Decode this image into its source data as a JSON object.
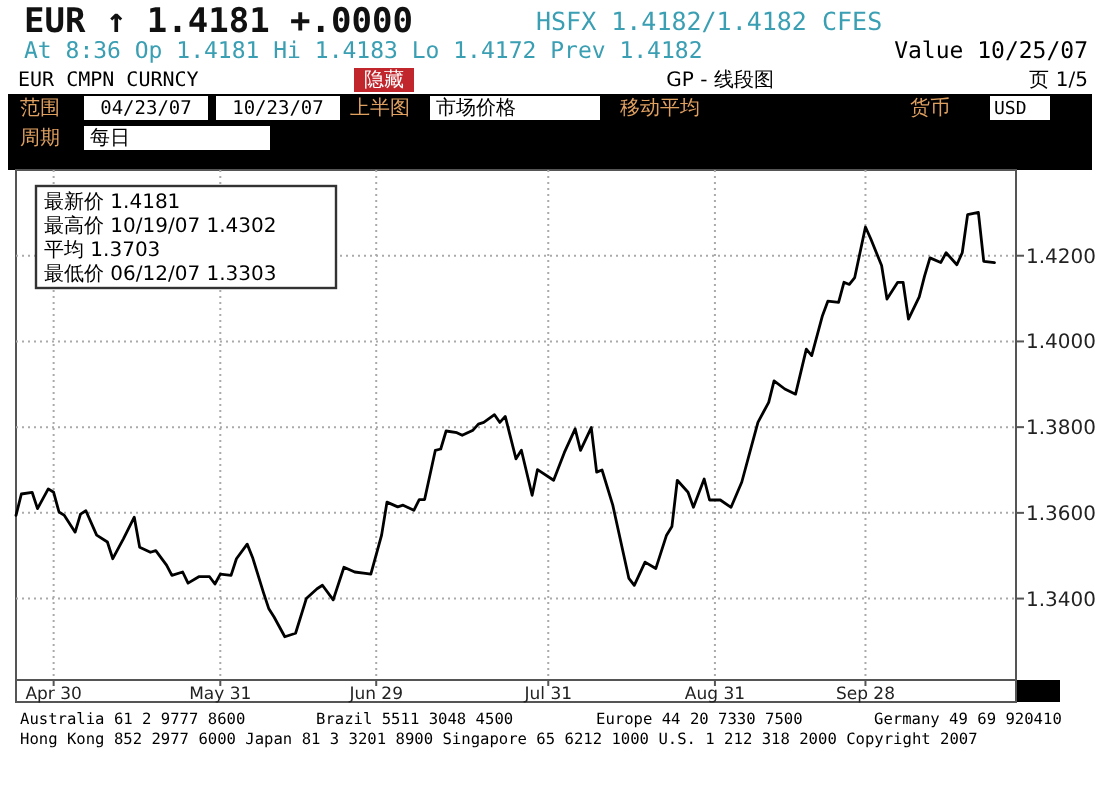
{
  "chart_data": {
    "type": "line",
    "title": "EUR ↑ 1.4181 +.0000",
    "subtitle": "HSFX 1.4182/1.4182 CFES",
    "annotations": [
      "At 8:36 Op 1.4181  Hi 1.4183  Lo 1.4172  Prev 1.4182",
      "Value 10/25/07",
      "EUR CMPN CURNCY",
      "隐藏",
      "GP - 线段图",
      "页 1/5",
      "范围",
      "04/23/07",
      "10/23/07",
      "上半图",
      "市场价格",
      "移动平均",
      "货币",
      "USD",
      "周期",
      "每日",
      "最新价 1.4181",
      "最高价 10/19/07 1.4302",
      "平均 1.3703",
      "最低价 06/12/07 1.3303",
      "Australia 61 2 9777 8600",
      "Brazil 5511 3048 4500",
      "Europe 44 20 7330 7500",
      "Germany 49 69 920410",
      "Hong Kong 852 2977 6000 Japan 81 3 3201 8900 Singapore 65 6212 1000 U.S. 1 212 318 2000 Copyright 2007"
    ],
    "x": [
      "2007-04-23",
      "2007-04-24",
      "2007-04-26",
      "2007-04-27",
      "2007-04-29",
      "2007-04-30",
      "2007-05-01",
      "2007-05-02",
      "2007-05-04",
      "2007-05-05",
      "2007-05-06",
      "2007-05-08",
      "2007-05-10",
      "2007-05-11",
      "2007-05-13",
      "2007-05-15",
      "2007-05-16",
      "2007-05-18",
      "2007-05-19",
      "2007-05-21",
      "2007-05-22",
      "2007-05-24",
      "2007-05-25",
      "2007-05-27",
      "2007-05-29",
      "2007-05-30",
      "2007-05-31",
      "2007-06-02",
      "2007-06-03",
      "2007-06-05",
      "2007-06-06",
      "2007-06-08",
      "2007-06-09",
      "2007-06-10",
      "2007-06-12",
      "2007-06-14",
      "2007-06-16",
      "2007-06-18",
      "2007-06-19",
      "2007-06-21",
      "2007-06-23",
      "2007-06-25",
      "2007-06-27",
      "2007-06-28",
      "2007-06-30",
      "2007-07-01",
      "2007-07-03",
      "2007-07-04",
      "2007-07-06",
      "2007-07-07",
      "2007-07-08",
      "2007-07-10",
      "2007-07-11",
      "2007-07-12",
      "2007-07-14",
      "2007-07-15",
      "2007-07-17",
      "2007-07-18",
      "2007-07-19",
      "2007-07-21",
      "2007-07-22",
      "2007-07-23",
      "2007-07-25",
      "2007-07-26",
      "2007-07-28",
      "2007-07-29",
      "2007-08-01",
      "2007-08-03",
      "2007-08-05",
      "2007-08-06",
      "2007-08-08",
      "2007-08-09",
      "2007-08-10",
      "2007-08-12",
      "2007-08-15",
      "2007-08-16",
      "2007-08-18",
      "2007-08-20",
      "2007-08-22",
      "2007-08-23",
      "2007-08-24",
      "2007-08-26",
      "2007-08-27",
      "2007-08-29",
      "2007-08-30",
      "2007-09-01",
      "2007-09-03",
      "2007-09-05",
      "2007-09-07",
      "2007-09-08",
      "2007-09-10",
      "2007-09-11",
      "2007-09-13",
      "2007-09-15",
      "2007-09-17",
      "2007-09-18",
      "2007-09-20",
      "2007-09-21",
      "2007-09-23",
      "2007-09-24",
      "2007-09-25",
      "2007-09-26",
      "2007-09-28",
      "2007-09-29",
      "2007-10-01",
      "2007-10-02",
      "2007-10-04",
      "2007-10-05",
      "2007-10-06",
      "2007-10-08",
      "2007-10-09",
      "2007-10-10",
      "2007-10-12",
      "2007-10-13",
      "2007-10-15",
      "2007-10-16",
      "2007-10-17",
      "2007-10-19",
      "2007-10-20",
      "2007-10-22"
    ],
    "series": [
      {
        "color": "#000000",
        "values": [
          1.3594,
          1.3644,
          1.3648,
          1.361,
          1.3656,
          1.3648,
          1.3602,
          1.3594,
          1.3555,
          1.3597,
          1.3605,
          1.3548,
          1.3532,
          1.3493,
          1.354,
          1.359,
          1.352,
          1.3508,
          1.3512,
          1.3478,
          1.3454,
          1.3462,
          1.3436,
          1.3451,
          1.3451,
          1.3434,
          1.3457,
          1.3454,
          1.3493,
          1.3527,
          1.3496,
          1.3415,
          1.3377,
          1.3357,
          1.3311,
          1.3319,
          1.34,
          1.3423,
          1.3431,
          1.3397,
          1.3473,
          1.3462,
          1.3459,
          1.3457,
          1.3548,
          1.3625,
          1.3614,
          1.3618,
          1.3606,
          1.3631,
          1.3631,
          1.3746,
          1.3749,
          1.3791,
          1.3787,
          1.3781,
          1.3793,
          1.3807,
          1.3811,
          1.3829,
          1.3811,
          1.3825,
          1.3726,
          1.3746,
          1.3641,
          1.3701,
          1.3676,
          1.3741,
          1.3796,
          1.3746,
          1.3799,
          1.3695,
          1.37,
          1.3618,
          1.3447,
          1.3431,
          1.3485,
          1.347,
          1.3548,
          1.3568,
          1.3676,
          1.3648,
          1.3613,
          1.3679,
          1.363,
          1.363,
          1.3613,
          1.3672,
          1.3765,
          1.3811,
          1.3858,
          1.3908,
          1.3889,
          1.3877,
          1.3982,
          1.3967,
          1.406,
          1.4094,
          1.4091,
          1.4138,
          1.4133,
          1.4149,
          1.4267,
          1.4239,
          1.4177,
          1.4099,
          1.4138,
          1.4138,
          1.4052,
          1.4104,
          1.4153,
          1.4195,
          1.4184,
          1.4207,
          1.4179,
          1.4207,
          1.4296,
          1.4301,
          1.4187,
          1.4184
        ]
      }
    ],
    "xlim": [
      "2007-04-23",
      "2007-10-26"
    ],
    "xticks": [
      {
        "value": "2007-04-30",
        "label": "Apr 30"
      },
      {
        "value": "2007-05-31",
        "label": "May 31"
      },
      {
        "value": "2007-06-29",
        "label": "Jun 29"
      },
      {
        "value": "2007-07-31",
        "label": "Jul 31"
      },
      {
        "value": "2007-08-31",
        "label": "Aug 31"
      },
      {
        "value": "2007-09-28",
        "label": "Sep 28"
      }
    ],
    "ylim": [
      1.321,
      1.44
    ],
    "yticks": [
      {
        "value": 1.34,
        "label": "1.3400"
      },
      {
        "value": 1.36,
        "label": "1.3600"
      },
      {
        "value": 1.38,
        "label": "1.3800"
      },
      {
        "value": 1.4,
        "label": "1.4000"
      },
      {
        "value": 1.42,
        "label": "1.4200"
      }
    ],
    "grid": true,
    "marker": "none",
    "line_style": "solid"
  }
}
